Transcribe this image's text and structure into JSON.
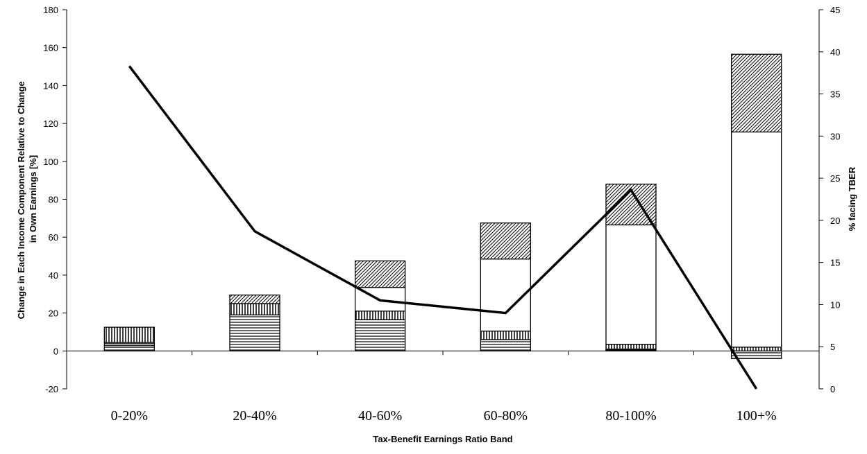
{
  "chart_data": {
    "type": "bar",
    "stacked": true,
    "title": "",
    "xlabel": "Tax-Benefit Earnings Ratio Band",
    "ylabel": "Change in Each Income Component Relative to Change in Own Earnings [%]",
    "ylabel_lines": [
      "Change in Each Income Component Relative to Change",
      "in Own Earnings [%]"
    ],
    "y2label": "% facing TBER",
    "categories": [
      "0-20%",
      "20-40%",
      "40-60%",
      "60-80%",
      "80-100%",
      "100+%"
    ],
    "ylim": [
      -20,
      180
    ],
    "y_ticks": [
      -20,
      0,
      20,
      40,
      60,
      80,
      100,
      120,
      140,
      160,
      180
    ],
    "y2lim": [
      0,
      45
    ],
    "y2_ticks": [
      0,
      5,
      10,
      15,
      20,
      25,
      30,
      35,
      40,
      45
    ],
    "grid": false,
    "legend": "none",
    "series": [
      {
        "pattern": "hlines",
        "values": [
          2,
          19,
          16.5,
          6,
          0.5,
          -4
        ]
      },
      {
        "pattern": "dense-hlines",
        "values": [
          2.5,
          0,
          0,
          0,
          0.5,
          0
        ]
      },
      {
        "pattern": "vlines",
        "values": [
          8,
          6,
          4.5,
          4.5,
          2.5,
          2
        ]
      },
      {
        "pattern": "blank",
        "values": [
          0,
          0,
          12.5,
          38,
          63,
          113.5
        ]
      },
      {
        "pattern": "diagonal",
        "values": [
          0,
          4.5,
          14,
          19,
          21.5,
          41
        ]
      }
    ],
    "line_series": {
      "axis": "right",
      "color": "#000000",
      "values": [
        38.3,
        18.7,
        10.5,
        9,
        23.6,
        0
      ]
    }
  }
}
